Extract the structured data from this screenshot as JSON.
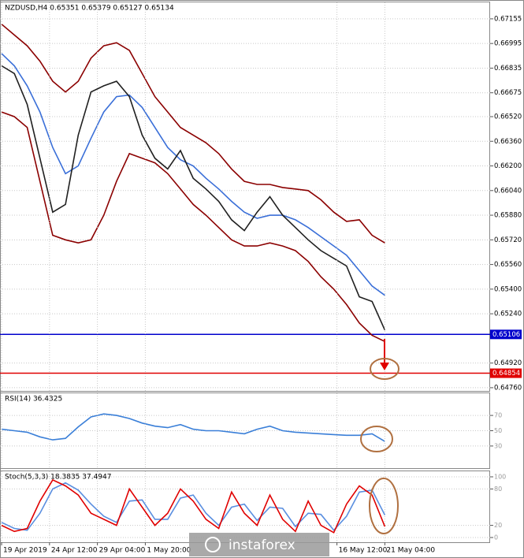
{
  "chart_data": [
    {
      "type": "line",
      "title": "NZDUSD,H4 0.65351 0.65379 0.65127 0.65134",
      "x": [
        0,
        2,
        4,
        6,
        8,
        10,
        12,
        14,
        16,
        18,
        20,
        22,
        24,
        26,
        28,
        30,
        32,
        34,
        36,
        38,
        40,
        42,
        44,
        46,
        48,
        50,
        52,
        54,
        56,
        58,
        60
      ],
      "xlim": [
        -0.25,
        75
      ],
      "ylim": [
        0.64734,
        0.67262
      ],
      "yticks": [
        0.67155,
        0.66995,
        0.66835,
        0.66675,
        {
          "value": 0.6652,
          "label": "0.66520"
        },
        {
          "value": 0.6636,
          "label": "0.66360"
        },
        {
          "value": 0.662,
          "label": "0.66200"
        },
        {
          "value": 0.6604,
          "label": "0.66040"
        },
        {
          "value": 0.6588,
          "label": "0.65880"
        },
        {
          "value": 0.6572,
          "label": "0.65720"
        },
        {
          "value": 0.6556,
          "label": "0.65560"
        },
        {
          "value": 0.654,
          "label": "0.65400"
        },
        {
          "value": 0.6524,
          "label": "0.65240"
        },
        {
          "value": 0.6492,
          "label": "0.64920"
        },
        {
          "value": 0.6476,
          "label": "0.64760"
        }
      ],
      "grid": true,
      "series": [
        {
          "color": "#8b0000",
          "values": [
            0.6712,
            0.6705,
            0.6698,
            0.6688,
            0.6675,
            0.6668,
            0.6675,
            0.669,
            0.6698,
            0.67,
            0.6695,
            0.668,
            0.6665,
            0.6655,
            0.6645,
            0.664,
            0.6635,
            0.6628,
            0.6618,
            0.661,
            0.6608,
            0.6608,
            0.6606,
            0.6605,
            0.6604,
            0.6598,
            0.659,
            0.6584,
            0.6585,
            0.6575,
            0.657
          ]
        },
        {
          "color": "#8b0000",
          "values": [
            0.6655,
            0.6652,
            0.6645,
            0.661,
            0.6575,
            0.6572,
            0.657,
            0.6572,
            0.6588,
            0.661,
            0.6628,
            0.6625,
            0.6622,
            0.6615,
            0.6605,
            0.6595,
            0.6588,
            0.658,
            0.6572,
            0.6568,
            0.6568,
            0.657,
            0.6568,
            0.6565,
            0.6558,
            0.6548,
            0.654,
            0.653,
            0.6518,
            0.651,
            0.6506
          ]
        },
        {
          "color": "#3a6fd8",
          "values": [
            0.6693,
            0.6685,
            0.6672,
            0.6655,
            0.6632,
            0.6615,
            0.662,
            0.6638,
            0.6655,
            0.6665,
            0.6666,
            0.6658,
            0.6645,
            0.6632,
            0.6624,
            0.662,
            0.6612,
            0.6605,
            0.6597,
            0.659,
            0.6586,
            0.6588,
            0.6588,
            0.6585,
            0.658,
            0.6574,
            0.6568,
            0.6562,
            0.6552,
            0.6542,
            0.6536
          ]
        },
        {
          "color": "#202020",
          "values": [
            0.6685,
            0.668,
            0.666,
            0.6625,
            0.659,
            0.6595,
            0.664,
            0.6668,
            0.6672,
            0.6675,
            0.6665,
            0.664,
            0.6625,
            0.6618,
            0.663,
            0.6612,
            0.6605,
            0.6597,
            0.6585,
            0.6578,
            0.659,
            0.66,
            0.6588,
            0.658,
            0.6572,
            0.6565,
            0.656,
            0.6555,
            0.6535,
            0.6532,
            0.65134
          ]
        }
      ],
      "levels": [
        {
          "value": 0.65106,
          "color": "#0000cc"
        },
        {
          "value": 0.64854,
          "color": "#e00000"
        }
      ],
      "watermark": "instaforex"
    },
    {
      "type": "line",
      "title": "RSI(14) 36.4325",
      "x": [
        0,
        2,
        4,
        6,
        8,
        10,
        12,
        14,
        16,
        18,
        20,
        22,
        24,
        26,
        28,
        30,
        32,
        34,
        36,
        38,
        40,
        42,
        44,
        46,
        48,
        50,
        52,
        54,
        56,
        58,
        60
      ],
      "xlim": [
        -0.25,
        75
      ],
      "ylim": [
        0,
        100
      ],
      "yticks": [
        70,
        50,
        30
      ],
      "grid": true,
      "series": [
        {
          "color": "#3a7fd8",
          "values": [
            52,
            50,
            48,
            42,
            38,
            40,
            55,
            68,
            72,
            70,
            66,
            60,
            56,
            54,
            58,
            52,
            50,
            50,
            48,
            46,
            52,
            56,
            50,
            48,
            47,
            46,
            45,
            44,
            44,
            46,
            36
          ]
        }
      ]
    },
    {
      "type": "line",
      "title": "Stoch(5,3,3) 18.3835 37.4947",
      "x": [
        0,
        2,
        4,
        6,
        8,
        10,
        12,
        14,
        16,
        18,
        20,
        22,
        24,
        26,
        28,
        30,
        32,
        34,
        36,
        38,
        40,
        42,
        44,
        46,
        48,
        50,
        52,
        54,
        56,
        58,
        60
      ],
      "xlim": [
        -0.25,
        75
      ],
      "ylim": [
        0,
        100
      ],
      "yticks": [
        100,
        80,
        20,
        0
      ],
      "grid": true,
      "xticks": [
        {
          "value": 0,
          "label": "19 Apr 2019"
        },
        {
          "value": 7.5,
          "label": "24 Apr 12:00"
        },
        {
          "value": 15,
          "label": "29 Apr 04:00"
        },
        {
          "value": 22.5,
          "label": "1 May 20:00"
        },
        {
          "value": 52.5,
          "label": "16 May 12:00"
        },
        {
          "value": 60,
          "label": "21 May 04:00"
        }
      ],
      "series": [
        {
          "color": "#5a8fe0",
          "values": [
            25,
            15,
            12,
            40,
            80,
            90,
            78,
            55,
            35,
            25,
            60,
            62,
            30,
            30,
            65,
            70,
            40,
            20,
            50,
            55,
            28,
            50,
            48,
            18,
            40,
            38,
            12,
            35,
            75,
            78,
            37
          ]
        },
        {
          "color": "#e00000",
          "values": [
            20,
            10,
            15,
            60,
            95,
            85,
            70,
            40,
            30,
            20,
            80,
            50,
            20,
            40,
            80,
            60,
            30,
            15,
            75,
            40,
            20,
            70,
            30,
            10,
            60,
            20,
            8,
            55,
            85,
            70,
            18
          ]
        }
      ]
    }
  ]
}
